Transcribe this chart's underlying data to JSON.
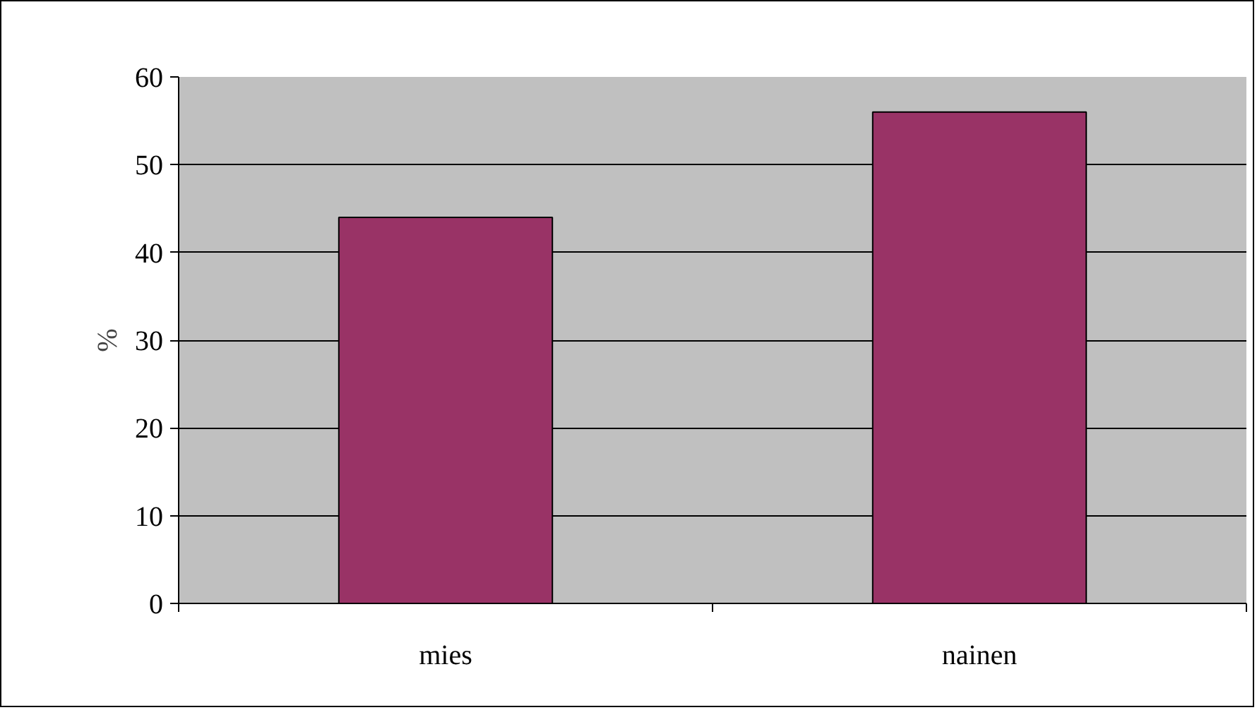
{
  "chart_data": {
    "type": "bar",
    "ylabel": "%",
    "categories": [
      "mies",
      "nainen"
    ],
    "values": [
      44,
      56
    ],
    "color": "#993366",
    "ylim": [
      0,
      60
    ],
    "yticks": [
      0,
      10,
      20,
      30,
      40,
      50,
      60
    ],
    "grid": "y"
  }
}
